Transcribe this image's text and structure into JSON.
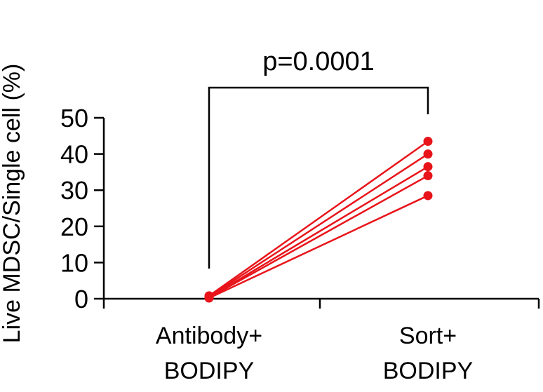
{
  "chart_data": {
    "type": "line",
    "title": "",
    "xlabel": "",
    "ylabel": "Live MDSC/Single cell (%)",
    "ylim": [
      0,
      50
    ],
    "yticks": [
      "0",
      "10",
      "20",
      "30",
      "40",
      "50"
    ],
    "categories": [
      [
        "Antibody+",
        "BODIPY"
      ],
      [
        "Sort+",
        "BODIPY"
      ]
    ],
    "series": [
      {
        "values": [
          0.8,
          43.5
        ]
      },
      {
        "values": [
          0.6,
          40.0
        ]
      },
      {
        "values": [
          0.4,
          36.5
        ]
      },
      {
        "values": [
          0.3,
          34.0
        ]
      },
      {
        "values": [
          0.2,
          28.5
        ]
      }
    ],
    "annotation": {
      "text": "p=0.0001",
      "between": [
        0,
        1
      ]
    },
    "series_color": "#e8141a",
    "grid": false,
    "legend": "none"
  }
}
